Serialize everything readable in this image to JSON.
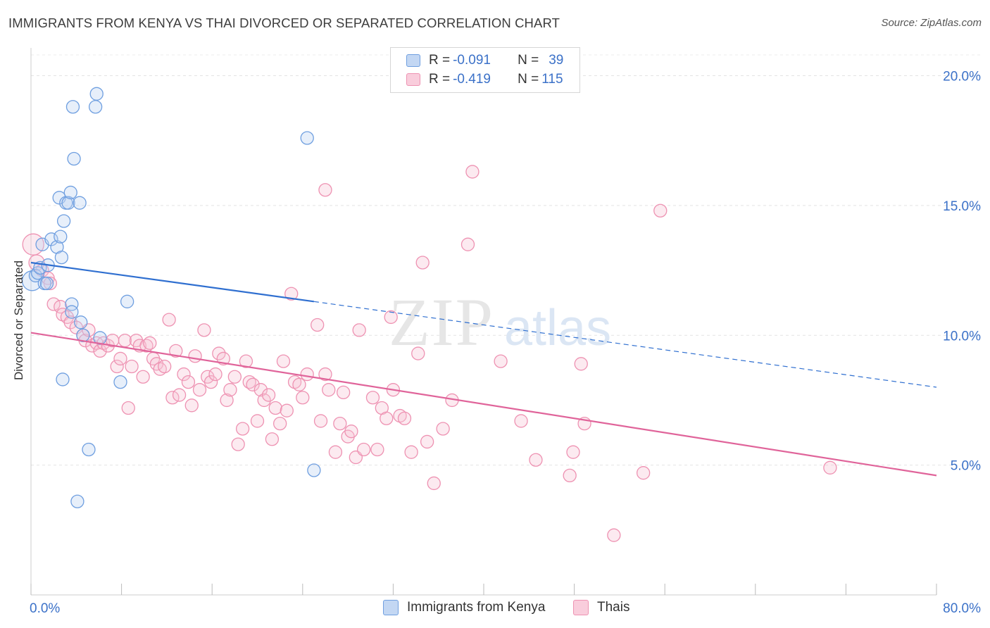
{
  "title": "IMMIGRANTS FROM KENYA VS THAI DIVORCED OR SEPARATED CORRELATION CHART",
  "source": "Source: ZipAtlas.com",
  "watermark": {
    "zip": "ZIP",
    "atlas": "atlas"
  },
  "legend": {
    "rows": [
      {
        "r_label": "R =",
        "r_value": "-0.091",
        "n_label": "N =",
        "n_value": "39"
      },
      {
        "r_label": "R =",
        "r_value": "-0.419",
        "n_label": "N =",
        "n_value": "115"
      }
    ]
  },
  "colors": {
    "blue": "#6f9fe0",
    "blue_line": "#2f6fd0",
    "pink": "#ee92b2",
    "pink_line": "#e0649a",
    "tick_text": "#3b71c8"
  },
  "chart_data": {
    "type": "scatter",
    "title": "IMMIGRANTS FROM KENYA VS THAI DIVORCED OR SEPARATED CORRELATION CHART",
    "xlabel": "",
    "ylabel": "Divorced or Separated",
    "xlim": [
      0,
      80
    ],
    "ylim": [
      0,
      20.8
    ],
    "y_ticks": [
      5,
      10,
      15,
      20
    ],
    "y_tick_labels": [
      "5.0%",
      "10.0%",
      "15.0%",
      "20.0%"
    ],
    "x_tick_labels": [
      "0.0%",
      "80.0%"
    ],
    "grid": "horizontal dashed",
    "legend_position": "top-center",
    "series": [
      {
        "name": "Immigrants from Kenya",
        "color": "#6f9fe0",
        "r": -0.091,
        "n": 39,
        "trend": {
          "x0": 0,
          "y0": 12.8,
          "x1": 25.0,
          "y1": 11.3,
          "dashed_to_x": 80,
          "dashed_to_y": 8.0
        },
        "points": [
          [
            0.1,
            12.1,
            14
          ],
          [
            0.4,
            12.3,
            9
          ],
          [
            0.6,
            12.4,
            9
          ],
          [
            0.8,
            12.6,
            9
          ],
          [
            1.2,
            12.0,
            9
          ],
          [
            1.4,
            12.0,
            9
          ],
          [
            1.5,
            12.7,
            9
          ],
          [
            1.0,
            13.5,
            9
          ],
          [
            1.8,
            13.7,
            9
          ],
          [
            2.3,
            13.4,
            9
          ],
          [
            2.6,
            13.8,
            9
          ],
          [
            2.7,
            13.0,
            9
          ],
          [
            2.5,
            15.3,
            9
          ],
          [
            2.9,
            14.4,
            9
          ],
          [
            3.1,
            15.1,
            9
          ],
          [
            3.3,
            15.1,
            9
          ],
          [
            3.5,
            15.5,
            9
          ],
          [
            4.3,
            15.1,
            9
          ],
          [
            3.8,
            16.8,
            9
          ],
          [
            3.7,
            18.8,
            9
          ],
          [
            5.7,
            18.8,
            9
          ],
          [
            5.8,
            19.3,
            9
          ],
          [
            3.6,
            11.2,
            9
          ],
          [
            3.6,
            10.9,
            9
          ],
          [
            4.4,
            10.5,
            9
          ],
          [
            4.6,
            10.0,
            9
          ],
          [
            6.1,
            9.9,
            9
          ],
          [
            2.8,
            8.3,
            9
          ],
          [
            7.9,
            8.2,
            9
          ],
          [
            5.1,
            5.6,
            9
          ],
          [
            4.1,
            3.6,
            9
          ],
          [
            8.5,
            11.3,
            9
          ],
          [
            24.4,
            17.6,
            9
          ],
          [
            25.0,
            4.8,
            9
          ]
        ]
      },
      {
        "name": "Thais",
        "color": "#ee92b2",
        "r": -0.419,
        "n": 115,
        "trend": {
          "x0": 0,
          "y0": 10.1,
          "x1": 80,
          "y1": 4.6
        },
        "points": [
          [
            0.2,
            13.5,
            15
          ],
          [
            0.5,
            12.8,
            11
          ],
          [
            1.0,
            12.5,
            9
          ],
          [
            1.5,
            12.2,
            9
          ],
          [
            1.7,
            12.0,
            9
          ],
          [
            2.0,
            11.2,
            9
          ],
          [
            2.6,
            11.1,
            9
          ],
          [
            2.8,
            10.8,
            9
          ],
          [
            3.2,
            10.7,
            9
          ],
          [
            3.5,
            10.5,
            9
          ],
          [
            4.0,
            10.3,
            9
          ],
          [
            4.6,
            10.0,
            9
          ],
          [
            4.8,
            9.8,
            9
          ],
          [
            5.1,
            10.2,
            9
          ],
          [
            5.4,
            9.6,
            9
          ],
          [
            5.8,
            9.7,
            9
          ],
          [
            6.1,
            9.4,
            9
          ],
          [
            6.4,
            9.7,
            9
          ],
          [
            6.8,
            9.6,
            9
          ],
          [
            7.2,
            9.8,
            9
          ],
          [
            7.6,
            8.8,
            9
          ],
          [
            7.9,
            9.1,
            9
          ],
          [
            8.3,
            9.8,
            9
          ],
          [
            8.6,
            7.2,
            9
          ],
          [
            8.9,
            8.8,
            9
          ],
          [
            9.3,
            9.8,
            9
          ],
          [
            9.6,
            9.6,
            9
          ],
          [
            9.9,
            8.4,
            9
          ],
          [
            10.2,
            9.6,
            9
          ],
          [
            10.5,
            9.7,
            9
          ],
          [
            10.8,
            9.1,
            9
          ],
          [
            11.1,
            8.9,
            9
          ],
          [
            11.4,
            8.7,
            9
          ],
          [
            11.8,
            8.8,
            9
          ],
          [
            12.2,
            10.6,
            9
          ],
          [
            12.5,
            7.6,
            9
          ],
          [
            12.8,
            9.4,
            9
          ],
          [
            13.1,
            7.7,
            9
          ],
          [
            13.5,
            8.5,
            9
          ],
          [
            13.9,
            8.2,
            9
          ],
          [
            14.2,
            7.3,
            9
          ],
          [
            14.5,
            9.2,
            9
          ],
          [
            14.9,
            7.9,
            9
          ],
          [
            15.3,
            10.2,
            9
          ],
          [
            15.6,
            8.4,
            9
          ],
          [
            15.9,
            8.2,
            9
          ],
          [
            16.3,
            8.5,
            9
          ],
          [
            16.6,
            9.3,
            9
          ],
          [
            17.0,
            9.1,
            9
          ],
          [
            17.3,
            7.5,
            9
          ],
          [
            17.6,
            7.9,
            9
          ],
          [
            18.0,
            8.4,
            9
          ],
          [
            18.3,
            5.8,
            9
          ],
          [
            18.7,
            6.4,
            9
          ],
          [
            19.0,
            9.0,
            9
          ],
          [
            19.3,
            8.2,
            9
          ],
          [
            19.6,
            8.1,
            9
          ],
          [
            20.0,
            6.7,
            9
          ],
          [
            20.3,
            7.9,
            9
          ],
          [
            20.6,
            7.5,
            9
          ],
          [
            21.0,
            7.7,
            9
          ],
          [
            21.3,
            6.0,
            9
          ],
          [
            21.6,
            7.2,
            9
          ],
          [
            22.0,
            6.6,
            9
          ],
          [
            22.3,
            9.0,
            9
          ],
          [
            22.6,
            7.1,
            9
          ],
          [
            23.0,
            11.6,
            9
          ],
          [
            23.3,
            8.2,
            9
          ],
          [
            23.7,
            8.1,
            9
          ],
          [
            24.0,
            7.6,
            9
          ],
          [
            24.4,
            8.5,
            9
          ],
          [
            25.3,
            10.4,
            9
          ],
          [
            25.6,
            6.7,
            9
          ],
          [
            26.0,
            8.5,
            9
          ],
          [
            26.3,
            7.9,
            9
          ],
          [
            26.9,
            5.5,
            9
          ],
          [
            27.3,
            6.6,
            9
          ],
          [
            27.6,
            7.8,
            9
          ],
          [
            28.0,
            6.1,
            9
          ],
          [
            28.3,
            6.3,
            9
          ],
          [
            28.7,
            5.3,
            9
          ],
          [
            29.0,
            10.2,
            9
          ],
          [
            29.4,
            5.6,
            9
          ],
          [
            30.2,
            7.6,
            9
          ],
          [
            30.6,
            5.6,
            9
          ],
          [
            31.0,
            7.2,
            9
          ],
          [
            31.4,
            6.8,
            9
          ],
          [
            31.8,
            10.7,
            9
          ],
          [
            32.0,
            7.9,
            9
          ],
          [
            32.6,
            6.9,
            9
          ],
          [
            33.0,
            6.8,
            9
          ],
          [
            33.6,
            5.5,
            9
          ],
          [
            34.2,
            9.3,
            9
          ],
          [
            34.6,
            12.8,
            9
          ],
          [
            35.0,
            5.9,
            9
          ],
          [
            35.6,
            4.3,
            9
          ],
          [
            36.4,
            6.4,
            9
          ],
          [
            37.2,
            7.5,
            9
          ],
          [
            38.6,
            13.5,
            9
          ],
          [
            39.0,
            16.3,
            9
          ],
          [
            41.5,
            9.0,
            9
          ],
          [
            43.3,
            6.7,
            9
          ],
          [
            44.6,
            5.2,
            9
          ],
          [
            47.6,
            4.6,
            9
          ],
          [
            47.9,
            5.5,
            9
          ],
          [
            48.6,
            8.9,
            9
          ],
          [
            48.9,
            6.6,
            9
          ],
          [
            51.5,
            2.3,
            9
          ],
          [
            54.1,
            4.7,
            9
          ],
          [
            55.6,
            14.8,
            9
          ],
          [
            70.6,
            4.9,
            9
          ],
          [
            26.0,
            15.6,
            9
          ]
        ]
      }
    ]
  }
}
